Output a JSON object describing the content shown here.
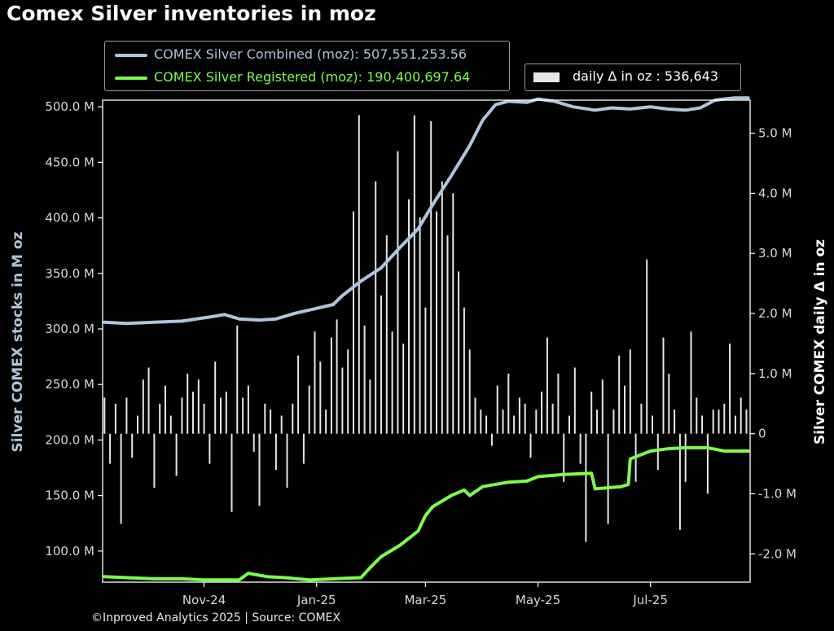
{
  "title": "Comex Silver inventories in moz",
  "footer": "©Inproved Analytics 2025 | Source: COMEX",
  "legend": {
    "combined": "COMEX Silver Combined (moz): 507,551,253.56",
    "registered": "COMEX Silver Registered (moz): 190,400,697.64",
    "daily": "daily Δ in oz : 536,643"
  },
  "colors": {
    "combined": "#b0c4de",
    "registered": "#7cfc4a",
    "bars": "#e6e6e6",
    "left_axis_label": "#b0c4de",
    "right_axis_label": "#ffffff"
  },
  "chart_data": {
    "type": "line",
    "ylabel_left": "Silver COMEX stocks in M oz",
    "ylabel_right": "Silver COMEX daily Δ in oz",
    "x_tick_labels": [
      "Nov-24",
      "Jan-25",
      "Mar-25",
      "May-25",
      "Jul-25"
    ],
    "x_ticks": [
      "2024-11-01",
      "2025-01-01",
      "2025-03-01",
      "2025-05-01",
      "2025-07-01"
    ],
    "x_range": [
      "2024-09-07",
      "2025-08-24"
    ],
    "y_left_ticks": [
      100,
      150,
      200,
      250,
      300,
      350,
      400,
      450,
      500
    ],
    "y_left_tick_labels": [
      "100.0 M",
      "150.0 M",
      "200.0 M",
      "250.0 M",
      "300.0 M",
      "350.0 M",
      "400.0 M",
      "450.0 M",
      "500.0 M"
    ],
    "y_left_range": [
      72,
      506
    ],
    "y_right_ticks": [
      -2.0,
      -1.0,
      0,
      1.0,
      2.0,
      3.0,
      4.0,
      5.0
    ],
    "y_right_tick_labels": [
      "-2.0 M",
      "-1.0 M",
      "0",
      "1.0 M",
      "2.0 M",
      "3.0 M",
      "4.0 M",
      "5.0 M"
    ],
    "y_right_range_millions": [
      -2.47,
      5.55
    ],
    "series": [
      {
        "name": "COMEX Silver Combined (moz)",
        "x": [
          "2024-09-08",
          "2024-09-20",
          "2024-10-05",
          "2024-10-20",
          "2024-11-05",
          "2024-11-12",
          "2024-11-20",
          "2024-12-01",
          "2024-12-10",
          "2024-12-20",
          "2024-12-28",
          "2025-01-10",
          "2025-01-15",
          "2025-01-25",
          "2025-02-05",
          "2025-02-15",
          "2025-02-25",
          "2025-03-05",
          "2025-03-15",
          "2025-03-25",
          "2025-04-01",
          "2025-04-08",
          "2025-04-15",
          "2025-04-25",
          "2025-05-01",
          "2025-05-10",
          "2025-05-20",
          "2025-06-01",
          "2025-06-10",
          "2025-06-20",
          "2025-07-01",
          "2025-07-10",
          "2025-07-20",
          "2025-07-28",
          "2025-08-05",
          "2025-08-15",
          "2025-08-23"
        ],
        "values": [
          306,
          305,
          306,
          307,
          311,
          313,
          309,
          308,
          309,
          314,
          317,
          322,
          330,
          343,
          355,
          373,
          390,
          412,
          438,
          465,
          488,
          502,
          505,
          504,
          507,
          505,
          500,
          497,
          499,
          498,
          500,
          498,
          497,
          499,
          506,
          508,
          508
        ]
      },
      {
        "name": "COMEX Silver Registered (moz)",
        "x": [
          "2024-09-08",
          "2024-09-20",
          "2024-10-05",
          "2024-10-20",
          "2024-11-01",
          "2024-11-20",
          "2024-11-25",
          "2024-12-05",
          "2024-12-15",
          "2024-12-28",
          "2025-01-10",
          "2025-01-25",
          "2025-01-30",
          "2025-02-05",
          "2025-02-15",
          "2025-02-25",
          "2025-03-01",
          "2025-03-05",
          "2025-03-15",
          "2025-03-22",
          "2025-03-25",
          "2025-04-01",
          "2025-04-15",
          "2025-04-25",
          "2025-05-01",
          "2025-05-15",
          "2025-05-30",
          "2025-06-01",
          "2025-06-15",
          "2025-06-19",
          "2025-06-20",
          "2025-07-01",
          "2025-07-10",
          "2025-07-20",
          "2025-08-01",
          "2025-08-10",
          "2025-08-23"
        ],
        "values": [
          77,
          76,
          75,
          75,
          74,
          74,
          80,
          77,
          76,
          74,
          75,
          76,
          85,
          95,
          105,
          118,
          132,
          140,
          150,
          155,
          150,
          158,
          162,
          163,
          167,
          169,
          170,
          156,
          158,
          160,
          183,
          190,
          192,
          193,
          193,
          190,
          190
        ]
      }
    ],
    "daily_delta_bars": {
      "name": "daily Δ in oz",
      "units": "millions of oz",
      "x": [
        "2024-09-08",
        "2024-09-11",
        "2024-09-14",
        "2024-09-17",
        "2024-09-20",
        "2024-09-23",
        "2024-09-26",
        "2024-09-29",
        "2024-10-02",
        "2024-10-05",
        "2024-10-08",
        "2024-10-11",
        "2024-10-14",
        "2024-10-17",
        "2024-10-20",
        "2024-10-23",
        "2024-10-26",
        "2024-10-29",
        "2024-11-01",
        "2024-11-04",
        "2024-11-07",
        "2024-11-10",
        "2024-11-13",
        "2024-11-16",
        "2024-11-19",
        "2024-11-22",
        "2024-11-25",
        "2024-11-28",
        "2024-12-01",
        "2024-12-04",
        "2024-12-07",
        "2024-12-10",
        "2024-12-13",
        "2024-12-16",
        "2024-12-19",
        "2024-12-22",
        "2024-12-25",
        "2024-12-28",
        "2024-12-31",
        "2025-01-03",
        "2025-01-06",
        "2025-01-09",
        "2025-01-12",
        "2025-01-15",
        "2025-01-18",
        "2025-01-21",
        "2025-01-24",
        "2025-01-27",
        "2025-01-30",
        "2025-02-02",
        "2025-02-05",
        "2025-02-08",
        "2025-02-11",
        "2025-02-14",
        "2025-02-17",
        "2025-02-20",
        "2025-02-23",
        "2025-02-26",
        "2025-03-01",
        "2025-03-04",
        "2025-03-07",
        "2025-03-10",
        "2025-03-13",
        "2025-03-16",
        "2025-03-19",
        "2025-03-22",
        "2025-03-25",
        "2025-03-28",
        "2025-03-31",
        "2025-04-03",
        "2025-04-06",
        "2025-04-09",
        "2025-04-12",
        "2025-04-15",
        "2025-04-18",
        "2025-04-21",
        "2025-04-24",
        "2025-04-27",
        "2025-04-30",
        "2025-05-03",
        "2025-05-06",
        "2025-05-09",
        "2025-05-12",
        "2025-05-15",
        "2025-05-18",
        "2025-05-21",
        "2025-05-24",
        "2025-05-27",
        "2025-05-30",
        "2025-06-02",
        "2025-06-05",
        "2025-06-08",
        "2025-06-11",
        "2025-06-14",
        "2025-06-17",
        "2025-06-20",
        "2025-06-23",
        "2025-06-26",
        "2025-06-29",
        "2025-07-02",
        "2025-07-05",
        "2025-07-08",
        "2025-07-11",
        "2025-07-14",
        "2025-07-17",
        "2025-07-20",
        "2025-07-23",
        "2025-07-26",
        "2025-07-29",
        "2025-08-01",
        "2025-08-04",
        "2025-08-07",
        "2025-08-10",
        "2025-08-13",
        "2025-08-16",
        "2025-08-19",
        "2025-08-22"
      ],
      "values": [
        0.6,
        -0.5,
        0.5,
        -1.5,
        0.6,
        -0.4,
        0.3,
        0.9,
        1.1,
        -0.9,
        0.5,
        0.8,
        0.3,
        -0.7,
        0.6,
        1.0,
        0.7,
        0.9,
        0.5,
        -0.5,
        1.2,
        0.6,
        0.7,
        -1.3,
        1.8,
        0.6,
        0.8,
        -0.3,
        -1.2,
        0.5,
        0.4,
        -0.6,
        0.3,
        -0.9,
        0.5,
        1.3,
        -0.5,
        0.8,
        1.7,
        1.2,
        0.4,
        1.6,
        1.9,
        1.1,
        1.4,
        3.7,
        5.3,
        1.8,
        0.9,
        4.2,
        2.3,
        3.3,
        1.7,
        4.7,
        1.5,
        3.9,
        5.3,
        3.6,
        2.1,
        5.2,
        3.7,
        4.2,
        3.3,
        4.0,
        2.7,
        2.1,
        1.4,
        0.6,
        0.4,
        0.3,
        -0.2,
        0.8,
        0.4,
        1.0,
        0.3,
        0.6,
        0.5,
        -0.4,
        0.4,
        0.7,
        1.6,
        0.5,
        1.0,
        -0.8,
        0.3,
        1.1,
        -0.5,
        -1.8,
        0.7,
        0.4,
        0.9,
        -1.5,
        0.4,
        1.3,
        0.8,
        1.4,
        -0.8,
        0.5,
        2.9,
        0.3,
        -0.6,
        1.6,
        1.0,
        0.4,
        -1.6,
        -0.8,
        1.7,
        0.6,
        0.3,
        -1.0,
        0.4,
        0.4,
        0.5,
        1.5,
        0.3,
        0.6,
        0.4
      ]
    }
  }
}
